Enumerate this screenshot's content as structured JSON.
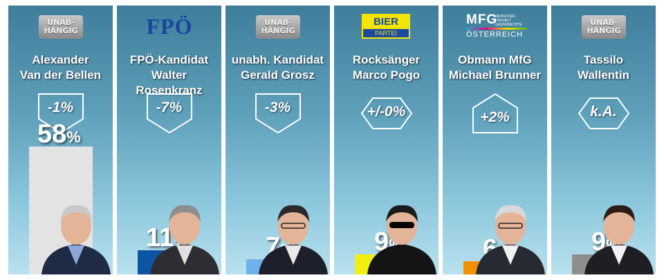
{
  "chart_data": {
    "type": "bar",
    "categories": [
      "Alexander Van der Bellen",
      "Walter Rosenkranz",
      "Gerald Grosz",
      "Marco Pogo",
      "Michael Brunner",
      "Tassilo Wallentin"
    ],
    "values": [
      58,
      11,
      7,
      9,
      6,
      9
    ],
    "value_unit": "%",
    "ylim": [
      0,
      60
    ],
    "candidates": [
      {
        "name_line1": "Alexander",
        "name_line2": "Van der Bellen",
        "party": "UNAB-HÄNGIG",
        "change": "-1%",
        "change_dir": "down",
        "value": 58,
        "bar_color": "#e3e3e3"
      },
      {
        "name_line1": "FPÖ-Kandidat",
        "name_line2": "Walter Rosenkranz",
        "party": "FPÖ",
        "change": "-7%",
        "change_dir": "down",
        "value": 11,
        "bar_color": "#0d55a4"
      },
      {
        "name_line1": "unabh. Kandidat",
        "name_line2": "Gerald Grosz",
        "party": "UNAB-HÄNGIG",
        "change": "-3%",
        "change_dir": "down",
        "value": 7,
        "bar_color": "#6fb1ea"
      },
      {
        "name_line1": "Rocksänger",
        "name_line2": "Marco Pogo",
        "party": "BIER PARTEI",
        "change": "+/-0%",
        "change_dir": "none",
        "value": 9,
        "bar_color": "#f0ef10"
      },
      {
        "name_line1": "Obmann MfG",
        "name_line2": "Michael Brunner",
        "party": "MFG ÖSTERREICH",
        "change": "+2%",
        "change_dir": "up",
        "value": 6,
        "bar_color": "#f29000"
      },
      {
        "name_line1": "Tassilo",
        "name_line2": "Wallentin",
        "party": "UNAB-HÄNGIG",
        "change": "k.A.",
        "change_dir": "none",
        "value": 9,
        "bar_color": "#8e8e8e"
      }
    ],
    "title": "",
    "xlabel": "",
    "ylabel": "",
    "grid": false,
    "legend": "none"
  },
  "logos": {
    "unab_line1": "UNAB-",
    "unab_line2": "HÄNGIG",
    "fpo": "FPÖ",
    "bier_top": "BIER",
    "bier_bottom": "PARTEI",
    "mfg_big": "MFG",
    "mfg_small1": "MENSCHEN",
    "mfg_small2": "FREIHEIT",
    "mfg_small3": "GRUNDRECHTE",
    "mfg_sub": "ÖSTERREICH"
  },
  "percent_sign": "%",
  "colors": {
    "background_top": "#3f7e9a",
    "background_bottom": "#b9e1ee",
    "text": "#ffffff"
  }
}
